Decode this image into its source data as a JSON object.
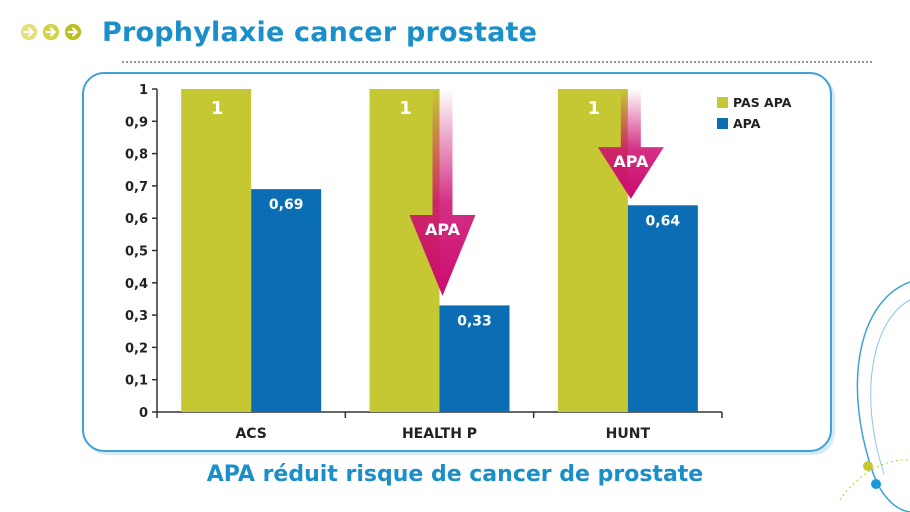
{
  "header": {
    "title": "Prophylaxie cancer prostate",
    "bullets": [
      "arrow-right-circle-icon",
      "arrow-right-circle-icon",
      "arrow-right-circle-icon"
    ]
  },
  "caption": "APA réduit risque de cancer de prostate",
  "colors": {
    "title_blue": "#1a8fc9",
    "pas_apa": "#c5c832",
    "apa": "#0b6db3",
    "arrow_magenta": "#cc0b6f",
    "panel_border": "#3fa2d4"
  },
  "chart_data": {
    "type": "bar",
    "categories": [
      "ACS",
      "HEALTH P",
      "HUNT"
    ],
    "series": [
      {
        "name": "PAS APA",
        "values": [
          1,
          1,
          1
        ],
        "labels": [
          "1",
          "1",
          "1"
        ]
      },
      {
        "name": "APA",
        "values": [
          0.69,
          0.33,
          0.64
        ],
        "labels": [
          "0,69",
          "0,33",
          "0,64"
        ]
      }
    ],
    "ylim": [
      0,
      1
    ],
    "yticks": [
      "0",
      "0,1",
      "0,2",
      "0,3",
      "0,4",
      "0,5",
      "0,6",
      "0,7",
      "0,8",
      "0,9",
      "1"
    ],
    "legend_position": "top-right",
    "annotations": [
      {
        "text": "APA",
        "category": "HEALTH P"
      },
      {
        "text": "APA",
        "category": "HUNT"
      }
    ]
  }
}
